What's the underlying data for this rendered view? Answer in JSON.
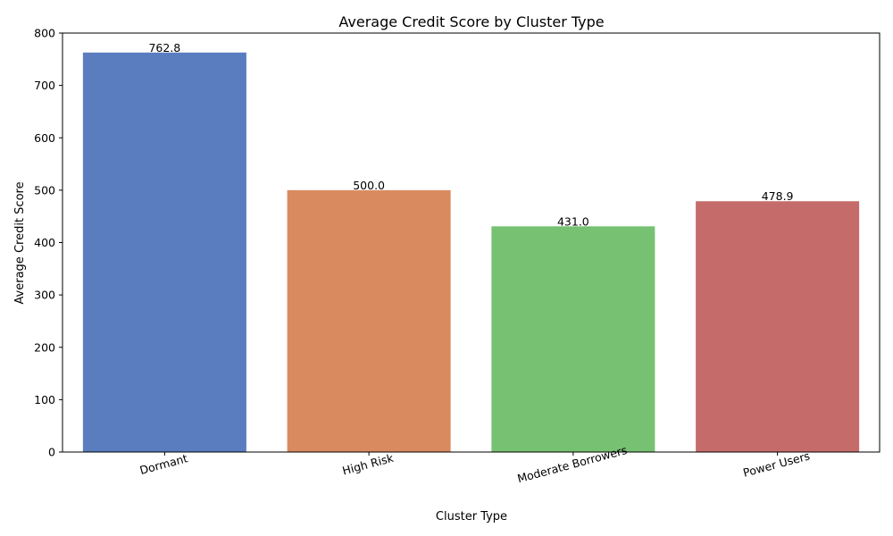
{
  "chart_data": {
    "type": "bar",
    "title": "Average Credit Score by Cluster Type",
    "xlabel": "Cluster Type",
    "ylabel": "Average Credit Score",
    "categories": [
      "Dormant",
      "High Risk",
      "Moderate Borrowers",
      "Power Users"
    ],
    "values": [
      762.8,
      500.0,
      431.0,
      478.9
    ],
    "data_labels": [
      "762.8",
      "500.0",
      "431.0",
      "478.9"
    ],
    "colors": [
      "#5a7dc0",
      "#d98b5f",
      "#77c172",
      "#c56c6b"
    ],
    "ylim": [
      0,
      800
    ],
    "yticks": [
      0,
      100,
      200,
      300,
      400,
      500,
      600,
      700,
      800
    ],
    "ytick_labels": [
      "0",
      "100",
      "200",
      "300",
      "400",
      "500",
      "600",
      "700",
      "800"
    ],
    "grid": false,
    "legend": "none"
  }
}
